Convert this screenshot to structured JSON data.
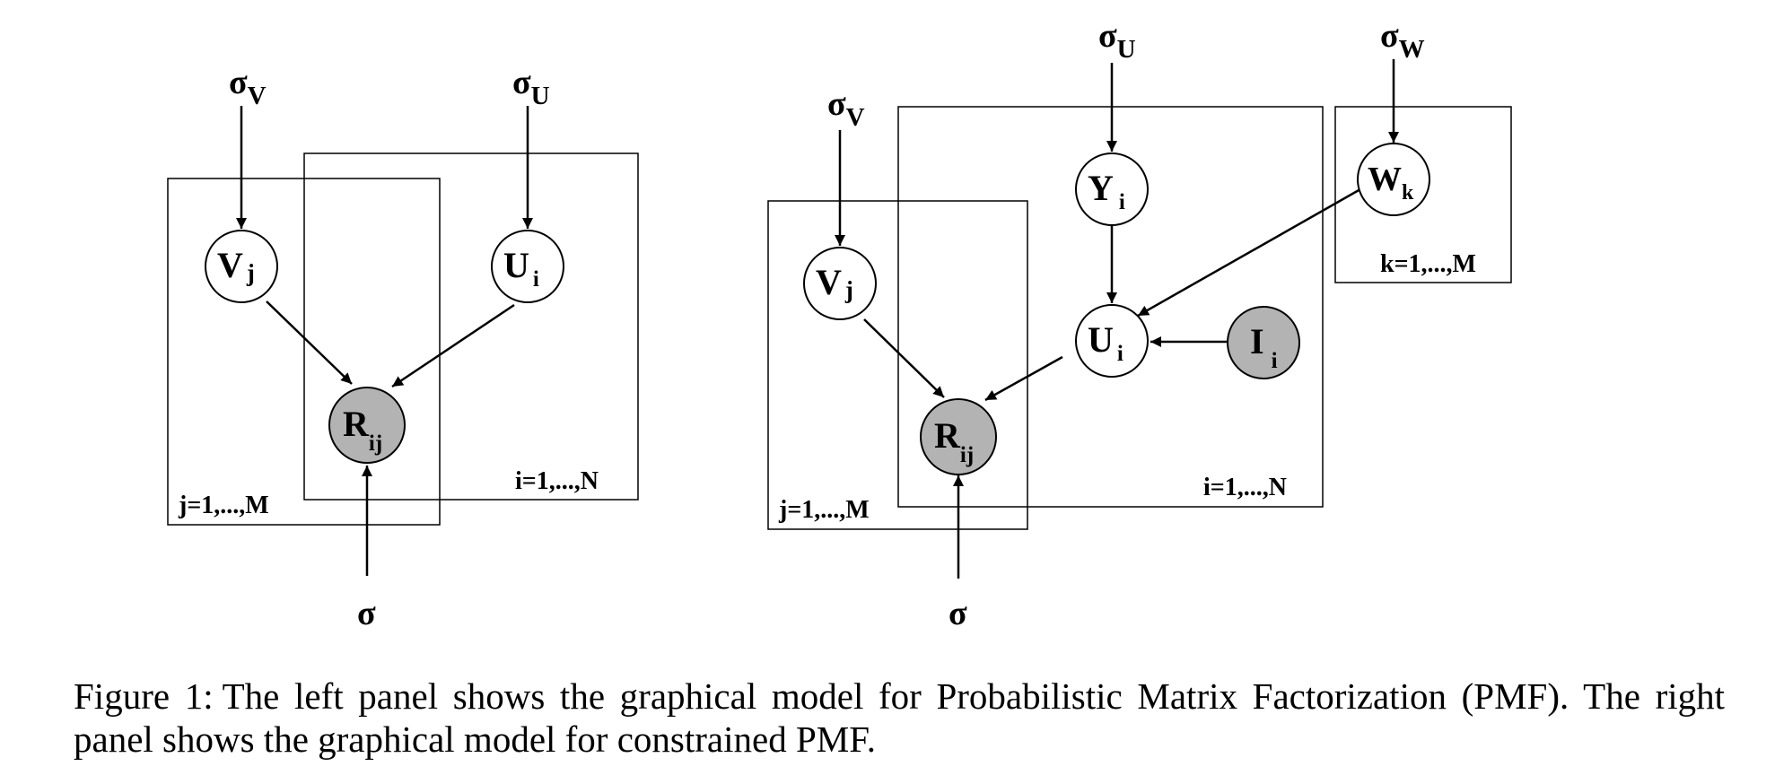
{
  "left_panel": {
    "sigma_v": {
      "base": "σ",
      "sub": "V"
    },
    "sigma_u": {
      "base": "σ",
      "sub": "U"
    },
    "node_v": {
      "base": "V",
      "sub": "j"
    },
    "node_u": {
      "base": "U",
      "sub": "i"
    },
    "node_r": {
      "base": "R",
      "sub": "ij"
    },
    "sigma": "σ",
    "plate_j": "j=1,...,M",
    "plate_i": "i=1,...,N"
  },
  "right_panel": {
    "sigma_v": {
      "base": "σ",
      "sub": "V"
    },
    "sigma_u": {
      "base": "σ",
      "sub": "U"
    },
    "sigma_w": {
      "base": "σ",
      "sub": "W"
    },
    "node_v": {
      "base": "V",
      "sub": "j"
    },
    "node_y": {
      "base": "Y",
      "sub": "i"
    },
    "node_w": {
      "base": "W",
      "sub": "k"
    },
    "node_u": {
      "base": "U",
      "sub": "i"
    },
    "node_i": {
      "base": "I",
      "sub": "i"
    },
    "node_r": {
      "base": "R",
      "sub": "ij"
    },
    "sigma": "σ",
    "plate_j": "j=1,...,M",
    "plate_i": "i=1,...,N",
    "plate_k": "k=1,...,M"
  },
  "colors": {
    "observed_node": "#b3b3b3",
    "latent_node": "#ffffff",
    "stroke": "#000000"
  },
  "caption": {
    "figure_label": "Figure 1:",
    "text": "The left panel shows the graphical model for Probabilistic Matrix Factorization (PMF). The right panel shows the graphical model for constrained PMF."
  }
}
